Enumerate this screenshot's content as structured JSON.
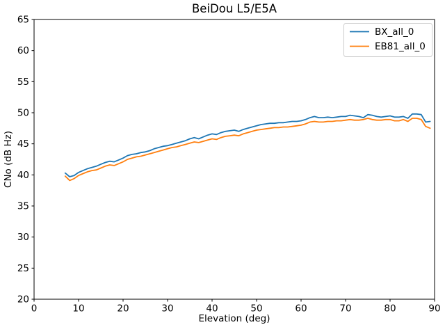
{
  "chart_data": {
    "type": "line",
    "title": "BeiDou L5/E5A",
    "xlabel": "Elevation (deg)",
    "ylabel": "CNo (dB Hz)",
    "xlim": [
      0,
      90
    ],
    "ylim": [
      20,
      65
    ],
    "xticks": [
      0,
      10,
      20,
      30,
      40,
      50,
      60,
      70,
      80,
      90
    ],
    "yticks": [
      20,
      25,
      30,
      35,
      40,
      45,
      50,
      55,
      60,
      65
    ],
    "grid": false,
    "legend_position": "upper right",
    "legend_border_color": "#cccccc",
    "axis_color": "#000000",
    "x": [
      7,
      8,
      9,
      10,
      11,
      12,
      13,
      14,
      15,
      16,
      17,
      18,
      19,
      20,
      21,
      22,
      23,
      24,
      25,
      26,
      27,
      28,
      29,
      30,
      31,
      32,
      33,
      34,
      35,
      36,
      37,
      38,
      39,
      40,
      41,
      42,
      43,
      44,
      45,
      46,
      47,
      48,
      49,
      50,
      51,
      52,
      53,
      54,
      55,
      56,
      57,
      58,
      59,
      60,
      61,
      62,
      63,
      64,
      65,
      66,
      67,
      68,
      69,
      70,
      71,
      72,
      73,
      74,
      75,
      76,
      77,
      78,
      79,
      80,
      81,
      82,
      83,
      84,
      85,
      86,
      87,
      88,
      89
    ],
    "series": [
      {
        "name": "BX_all_0",
        "color": "#1f77b4",
        "values": [
          40.3,
          39.7,
          39.9,
          40.4,
          40.7,
          41.0,
          41.2,
          41.4,
          41.7,
          42.0,
          42.2,
          42.1,
          42.4,
          42.7,
          43.1,
          43.3,
          43.4,
          43.6,
          43.7,
          43.9,
          44.2,
          44.4,
          44.6,
          44.7,
          44.9,
          45.1,
          45.3,
          45.5,
          45.8,
          46.0,
          45.8,
          46.1,
          46.4,
          46.6,
          46.5,
          46.8,
          47.0,
          47.1,
          47.2,
          47.0,
          47.3,
          47.5,
          47.7,
          47.9,
          48.1,
          48.2,
          48.3,
          48.3,
          48.4,
          48.4,
          48.5,
          48.6,
          48.6,
          48.7,
          48.9,
          49.2,
          49.4,
          49.2,
          49.2,
          49.3,
          49.2,
          49.3,
          49.4,
          49.4,
          49.6,
          49.5,
          49.4,
          49.2,
          49.7,
          49.6,
          49.4,
          49.3,
          49.4,
          49.5,
          49.3,
          49.3,
          49.4,
          49.1,
          49.8,
          49.8,
          49.7,
          48.5,
          48.6
        ]
      },
      {
        "name": "EB81_all_0",
        "color": "#ff7f0e",
        "values": [
          39.8,
          39.1,
          39.4,
          39.9,
          40.2,
          40.5,
          40.7,
          40.8,
          41.1,
          41.4,
          41.6,
          41.5,
          41.8,
          42.1,
          42.5,
          42.7,
          42.9,
          43.0,
          43.2,
          43.4,
          43.6,
          43.8,
          44.0,
          44.2,
          44.4,
          44.5,
          44.7,
          44.9,
          45.1,
          45.3,
          45.2,
          45.4,
          45.6,
          45.8,
          45.7,
          46.0,
          46.2,
          46.3,
          46.4,
          46.3,
          46.6,
          46.8,
          47.0,
          47.2,
          47.3,
          47.4,
          47.5,
          47.6,
          47.6,
          47.7,
          47.7,
          47.8,
          47.9,
          48.0,
          48.2,
          48.5,
          48.6,
          48.5,
          48.5,
          48.6,
          48.6,
          48.7,
          48.7,
          48.8,
          48.9,
          48.8,
          48.8,
          48.9,
          49.1,
          48.9,
          48.8,
          48.8,
          48.9,
          48.9,
          48.7,
          48.7,
          48.9,
          48.6,
          49.1,
          49.1,
          48.9,
          47.8,
          47.5
        ]
      }
    ]
  }
}
